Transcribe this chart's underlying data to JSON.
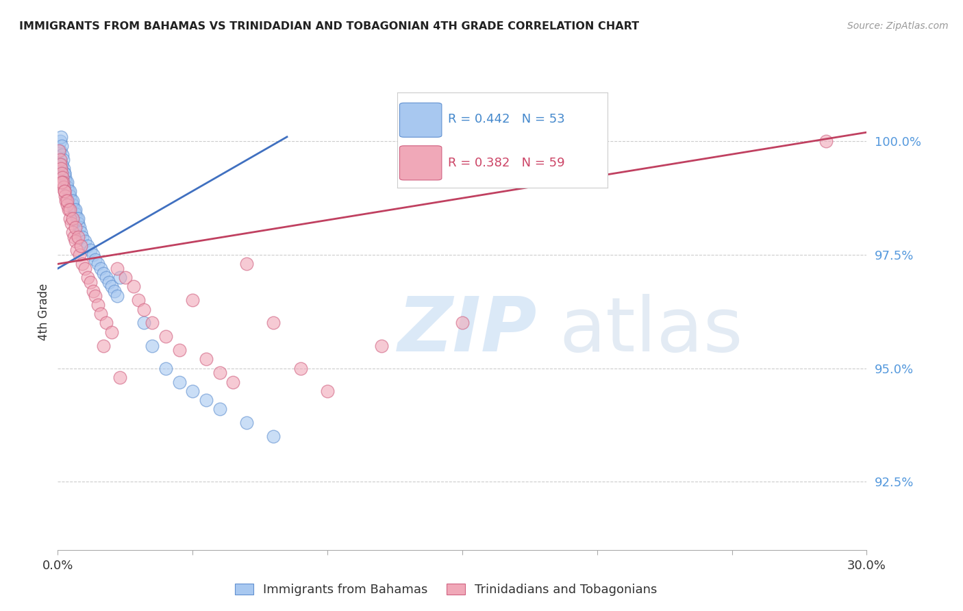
{
  "title": "IMMIGRANTS FROM BAHAMAS VS TRINIDADIAN AND TOBAGONIAN 4TH GRADE CORRELATION CHART",
  "source": "Source: ZipAtlas.com",
  "ylabel": "4th Grade",
  "xlim": [
    0.0,
    30.0
  ],
  "ylim": [
    91.0,
    101.5
  ],
  "yticks": [
    92.5,
    95.0,
    97.5,
    100.0
  ],
  "ytick_labels": [
    "92.5%",
    "95.0%",
    "97.5%",
    "100.0%"
  ],
  "blue_R": 0.442,
  "blue_N": 53,
  "pink_R": 0.382,
  "pink_N": 59,
  "blue_color": "#a8c8f0",
  "pink_color": "#f0a8b8",
  "blue_edge_color": "#6090d0",
  "pink_edge_color": "#d06080",
  "blue_line_color": "#4070c0",
  "pink_line_color": "#c04060",
  "legend_label_blue": "Immigrants from Bahamas",
  "legend_label_pink": "Trinidadians and Tobagonians",
  "blue_x": [
    0.05,
    0.08,
    0.1,
    0.12,
    0.15,
    0.18,
    0.2,
    0.22,
    0.25,
    0.28,
    0.3,
    0.35,
    0.4,
    0.45,
    0.5,
    0.55,
    0.6,
    0.65,
    0.7,
    0.75,
    0.8,
    0.85,
    0.9,
    1.0,
    1.1,
    1.2,
    1.3,
    1.4,
    1.5,
    1.6,
    1.7,
    1.8,
    1.9,
    2.0,
    2.1,
    2.2,
    2.3,
    0.15,
    0.25,
    0.35,
    0.45,
    0.55,
    0.65,
    0.75,
    3.2,
    3.5,
    4.0,
    4.5,
    5.0,
    5.5,
    6.0,
    7.0,
    8.0
  ],
  "blue_y": [
    99.5,
    99.8,
    100.0,
    100.1,
    99.9,
    99.7,
    99.6,
    99.4,
    99.3,
    99.2,
    99.1,
    99.0,
    98.9,
    98.8,
    98.7,
    98.6,
    98.5,
    98.4,
    98.3,
    98.2,
    98.1,
    98.0,
    97.9,
    97.8,
    97.7,
    97.6,
    97.5,
    97.4,
    97.3,
    97.2,
    97.1,
    97.0,
    96.9,
    96.8,
    96.7,
    96.6,
    97.0,
    99.5,
    99.3,
    99.1,
    98.9,
    98.7,
    98.5,
    98.3,
    96.0,
    95.5,
    95.0,
    94.7,
    94.5,
    94.3,
    94.1,
    93.8,
    93.5
  ],
  "pink_x": [
    0.05,
    0.08,
    0.1,
    0.12,
    0.15,
    0.18,
    0.2,
    0.22,
    0.25,
    0.28,
    0.3,
    0.35,
    0.4,
    0.45,
    0.5,
    0.55,
    0.6,
    0.65,
    0.7,
    0.8,
    0.9,
    1.0,
    1.1,
    1.2,
    1.3,
    1.4,
    1.5,
    1.6,
    1.8,
    2.0,
    2.2,
    2.5,
    2.8,
    3.0,
    3.2,
    3.5,
    4.0,
    4.5,
    5.0,
    5.5,
    6.0,
    6.5,
    7.0,
    8.0,
    9.0,
    10.0,
    12.0,
    15.0,
    28.5,
    0.15,
    0.25,
    0.35,
    0.45,
    0.55,
    0.65,
    0.75,
    0.85,
    1.7,
    2.3
  ],
  "pink_y": [
    99.8,
    99.6,
    99.5,
    99.4,
    99.3,
    99.2,
    99.1,
    99.0,
    98.9,
    98.8,
    98.7,
    98.6,
    98.5,
    98.3,
    98.2,
    98.0,
    97.9,
    97.8,
    97.6,
    97.5,
    97.3,
    97.2,
    97.0,
    96.9,
    96.7,
    96.6,
    96.4,
    96.2,
    96.0,
    95.8,
    97.2,
    97.0,
    96.8,
    96.5,
    96.3,
    96.0,
    95.7,
    95.4,
    96.5,
    95.2,
    94.9,
    94.7,
    97.3,
    96.0,
    95.0,
    94.5,
    95.5,
    96.0,
    100.0,
    99.1,
    98.9,
    98.7,
    98.5,
    98.3,
    98.1,
    97.9,
    97.7,
    95.5,
    94.8
  ],
  "blue_line_x0": 0.0,
  "blue_line_x1": 8.5,
  "blue_line_y0": 97.2,
  "blue_line_y1": 100.1,
  "pink_line_x0": 0.0,
  "pink_line_x1": 30.0,
  "pink_line_y0": 97.3,
  "pink_line_y1": 100.2
}
